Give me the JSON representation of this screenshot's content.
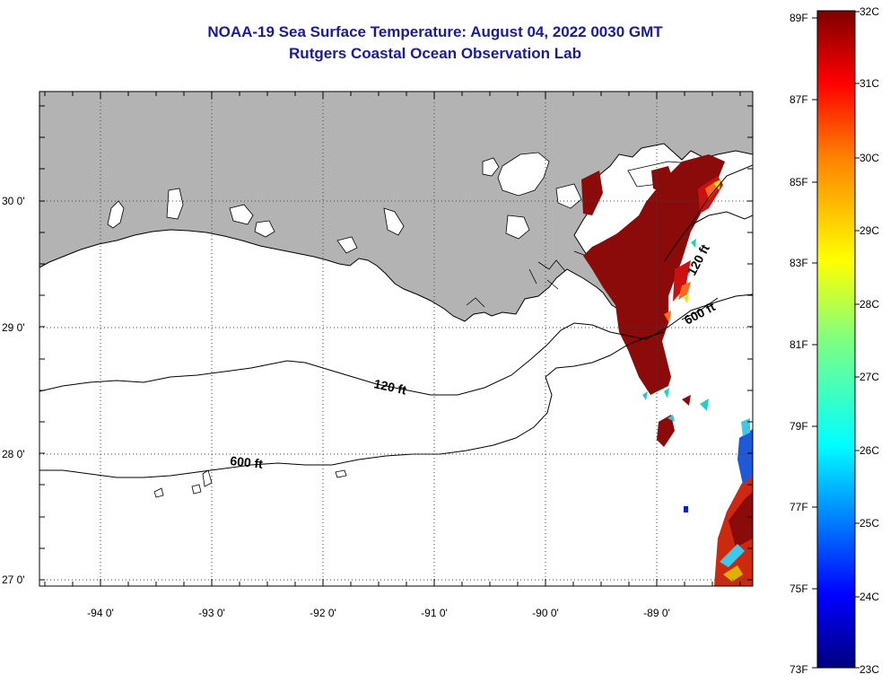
{
  "title": {
    "line1": "NOAA-19 Sea Surface Temperature:  August 04, 2022 0030 GMT",
    "line2": "Rutgers Coastal Ocean Observation Lab"
  },
  "map": {
    "lon_ticks": [
      "-94 0'",
      "-93 0'",
      "-92 0'",
      "-91 0'",
      "-90 0'",
      "-89 0'"
    ],
    "lat_ticks": [
      "30 0'",
      "29 0'",
      "28 0'",
      "27 0'"
    ],
    "contour_labels": {
      "c120_west": "120 ft",
      "c120_east": "120 ft",
      "c600_west": "600 ft",
      "c600_east": "600 ft"
    },
    "colors": {
      "land": "#b3b3b3",
      "water": "#ffffff",
      "sst_hot": "#8b0a0a"
    }
  },
  "colorbar": {
    "f_labels": [
      "89F",
      "87F",
      "85F",
      "83F",
      "81F",
      "79F",
      "77F",
      "75F",
      "73F"
    ],
    "c_labels": [
      "32C",
      "31C",
      "30C",
      "29C",
      "28C",
      "27C",
      "26C",
      "25C",
      "24C",
      "23C"
    ],
    "colormap": "jet"
  }
}
